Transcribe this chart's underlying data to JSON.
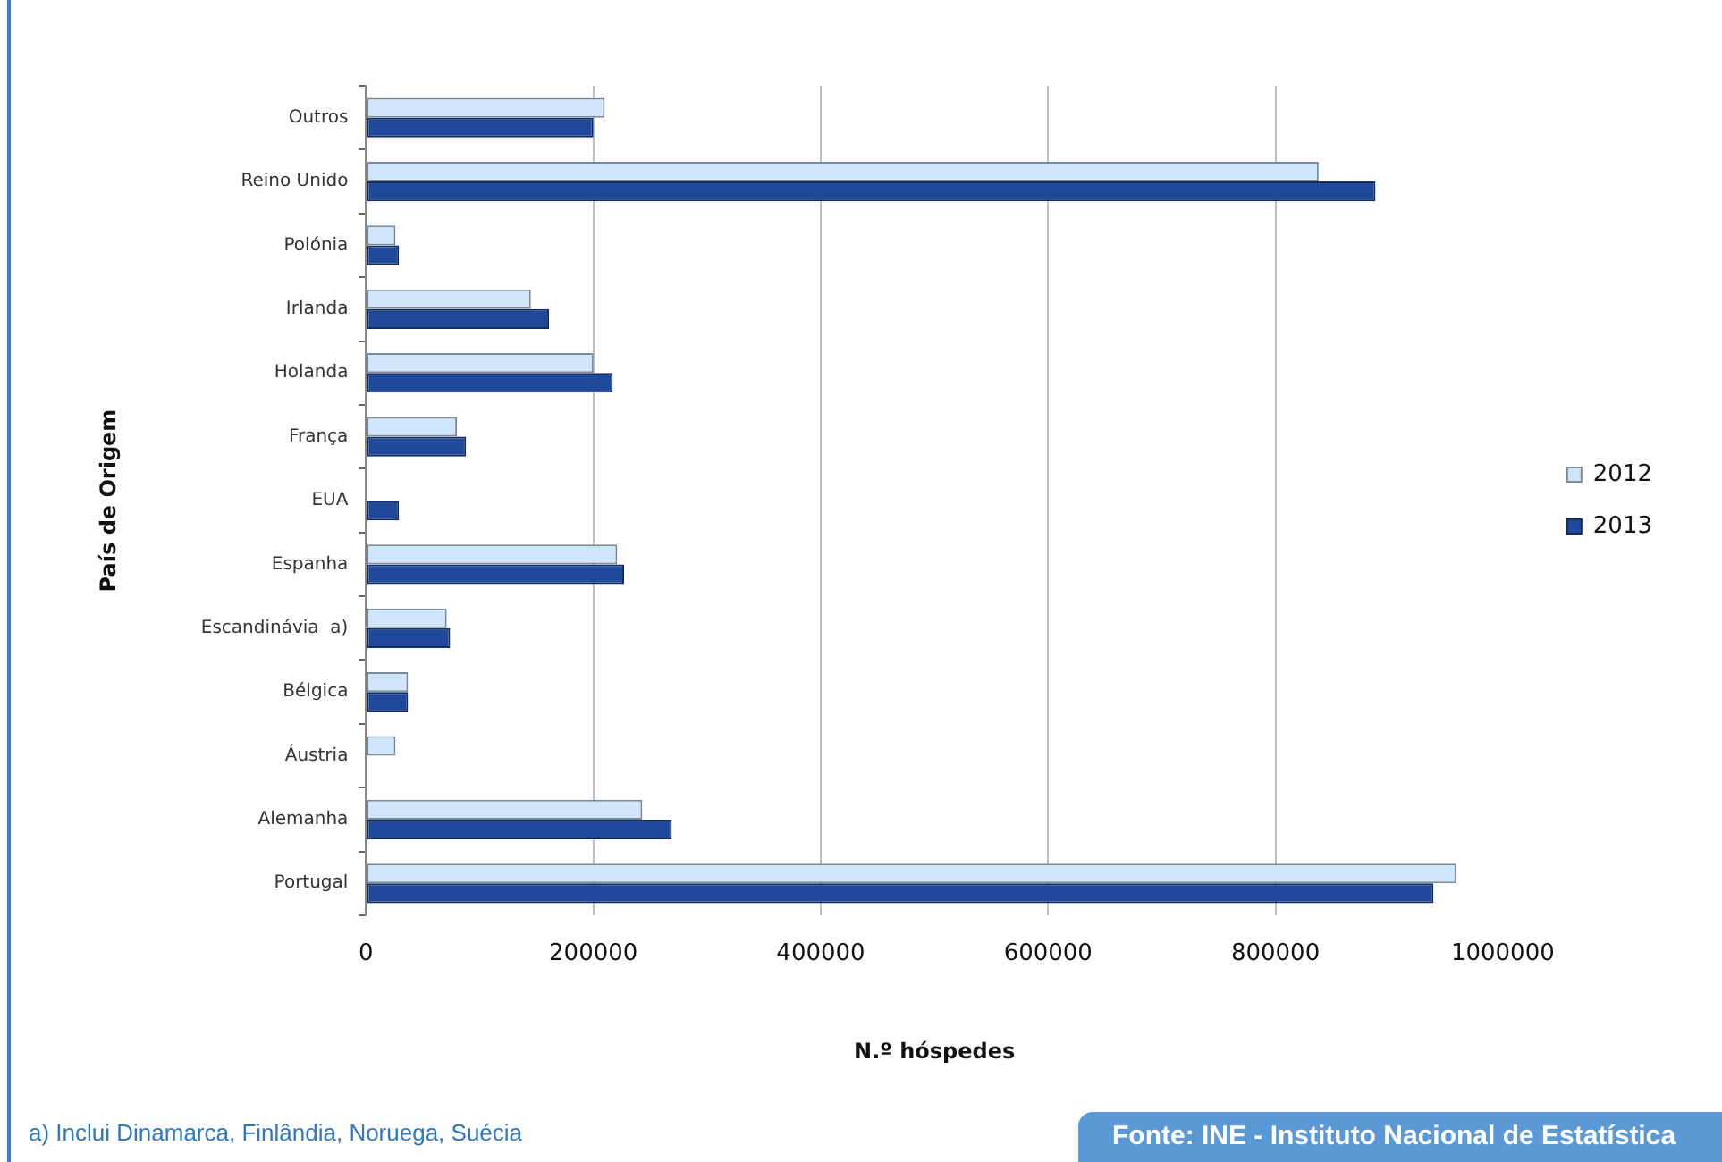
{
  "chart_data": {
    "type": "bar",
    "orientation": "horizontal",
    "xlabel": "N.º hóspedes",
    "ylabel": "País de Origem",
    "categories": [
      "Outros",
      "Reino Unido",
      "Polónia",
      "Irlanda",
      "Holanda",
      "França",
      "EUA",
      "Espanha",
      "Escandinávia  a)",
      "Bélgica",
      "Áustria",
      "Alemanha",
      "Portugal"
    ],
    "series": [
      {
        "name": "2012",
        "color": "#cfe6fa",
        "values": [
          210000,
          838000,
          26000,
          145000,
          200000,
          80000,
          null,
          221000,
          71000,
          37000,
          26000,
          243000,
          959000
        ]
      },
      {
        "name": "2013",
        "color": "#1f4a9c",
        "values": [
          200000,
          888000,
          29000,
          161000,
          217000,
          88000,
          29000,
          227000,
          74000,
          37000,
          null,
          269000,
          939000
        ]
      }
    ],
    "xlim": [
      0,
      1000000
    ],
    "xticks": [
      0,
      200000,
      400000,
      600000,
      800000,
      1000000
    ],
    "grid": "x",
    "legend": "right",
    "annotations": [
      "a) Inclui Dinamarca, Finlândia, Noruega, Suécia",
      "Fonte: INE - Instituto Nacional de Estatística"
    ]
  }
}
